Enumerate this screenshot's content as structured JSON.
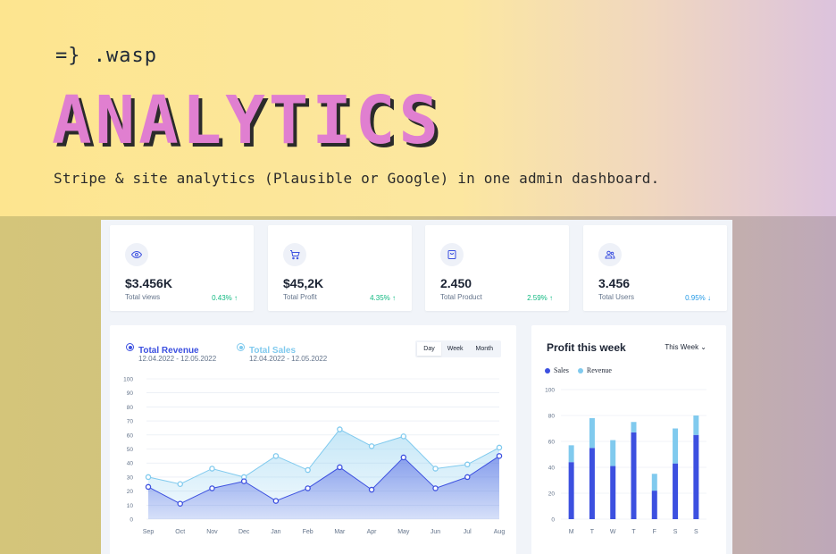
{
  "hero": {
    "brand": "=} .wasp",
    "title": "ANALYTICS",
    "subtitle": "Stripe & site analytics (Plausible or Google) in one admin dashboard."
  },
  "colors": {
    "revenue": "#3c50e0",
    "sales": "#80caee",
    "positive": "#10b981",
    "negative": "#259ae6",
    "title_pink": "#e07fd0"
  },
  "stats": [
    {
      "icon": "eye-icon",
      "value": "$3.456K",
      "label": "Total views",
      "delta": "0.43%",
      "trend": "up"
    },
    {
      "icon": "cart-icon",
      "value": "$45,2K",
      "label": "Total Profit",
      "delta": "4.35%",
      "trend": "up"
    },
    {
      "icon": "bag-icon",
      "value": "2.450",
      "label": "Total Product",
      "delta": "2.59%",
      "trend": "up"
    },
    {
      "icon": "users-icon",
      "value": "3.456",
      "label": "Total Users",
      "delta": "0.95%",
      "trend": "down"
    }
  ],
  "revenue_panel": {
    "legend": [
      {
        "name": "Total Revenue",
        "range": "12.04.2022 - 12.05.2022"
      },
      {
        "name": "Total Sales",
        "range": "12.04.2022 - 12.05.2022"
      }
    ],
    "periods": [
      "Day",
      "Week",
      "Month"
    ],
    "active_period": "Day"
  },
  "profit_panel": {
    "title": "Profit this week",
    "select": "This Week",
    "legend": [
      "Sales",
      "Revenue"
    ]
  },
  "chart_data": [
    {
      "type": "area",
      "categories": [
        "Sep",
        "Oct",
        "Nov",
        "Dec",
        "Jan",
        "Feb",
        "Mar",
        "Apr",
        "May",
        "Jun",
        "Jul",
        "Aug"
      ],
      "series": [
        {
          "name": "Total Revenue",
          "values": [
            23,
            11,
            22,
            27,
            13,
            22,
            37,
            21,
            44,
            22,
            30,
            45
          ]
        },
        {
          "name": "Total Sales",
          "values": [
            30,
            25,
            36,
            30,
            45,
            35,
            64,
            52,
            59,
            36,
            39,
            51
          ]
        }
      ],
      "yticks": [
        0,
        10,
        20,
        30,
        40,
        50,
        60,
        70,
        80,
        90,
        100
      ],
      "ylim": [
        0,
        100
      ],
      "grid": true
    },
    {
      "type": "bar",
      "categories": [
        "M",
        "T",
        "W",
        "T",
        "F",
        "S",
        "S"
      ],
      "series": [
        {
          "name": "Sales",
          "values": [
            44,
            55,
            41,
            67,
            22,
            43,
            65
          ]
        },
        {
          "name": "Revenue",
          "values": [
            13,
            23,
            20,
            8,
            13,
            27,
            15
          ]
        }
      ],
      "stacked": true,
      "yticks": [
        0,
        20,
        40,
        60,
        80,
        100
      ],
      "ylim": [
        0,
        100
      ],
      "grid": true
    }
  ]
}
